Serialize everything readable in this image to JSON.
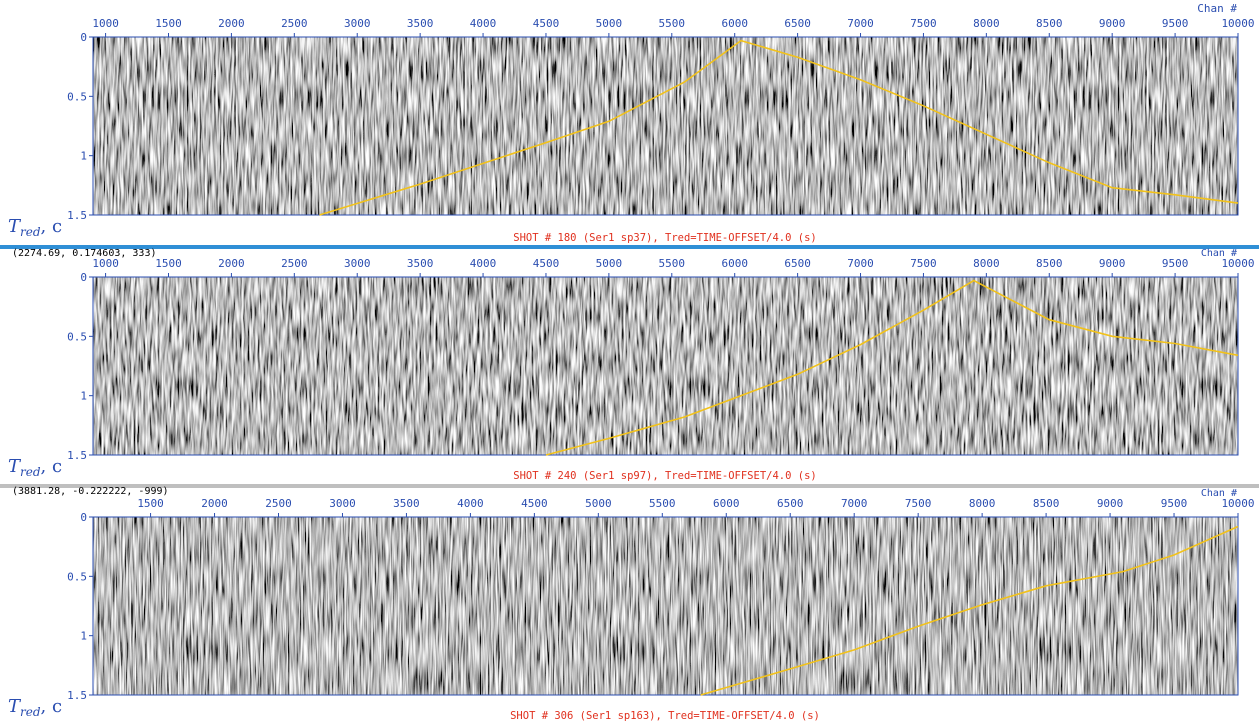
{
  "colors": {
    "axis": "#2a4db0",
    "pick_line": "#f2c21a",
    "caption": "#e0301e",
    "separator_1": "#2f8fd6",
    "separator_2": "#bfbfbf"
  },
  "ylabel": {
    "main": "T",
    "sub": "red",
    "unit": ", c"
  },
  "chart_data": [
    {
      "type": "line",
      "chart_kind": "seismic shot gather with first-break pick",
      "title": "SHOT # 180 (Ser1 sp37), Tred=TIME-OFFSET/4.0 (s)",
      "x_axis_label": "Chan #",
      "xlim": [
        900,
        10000
      ],
      "ylim": [
        1.5,
        0
      ],
      "x_ticks": [
        "1000",
        "1500",
        "2000",
        "2500",
        "3000",
        "3500",
        "4000",
        "4500",
        "5000",
        "5500",
        "6000",
        "6500",
        "7000",
        "7500",
        "8000",
        "8500",
        "9000",
        "9500",
        "10000"
      ],
      "y_ticks": [
        "0",
        "0.5",
        "1",
        "1.5"
      ],
      "readout": "",
      "series": [
        {
          "x": [
            2700,
            3500,
            4500,
            5000,
            5600,
            6050,
            6500,
            7000,
            7500,
            8000,
            8500,
            9000,
            9500,
            10000
          ],
          "y": [
            1.5,
            1.24,
            0.89,
            0.71,
            0.38,
            0.03,
            0.17,
            0.36,
            0.58,
            0.82,
            1.06,
            1.27,
            1.33,
            1.4
          ]
        }
      ]
    },
    {
      "type": "line",
      "chart_kind": "seismic shot gather with first-break pick",
      "title": "SHOT # 240 (Ser1 sp97), Tred=TIME-OFFSET/4.0 (s)",
      "x_axis_label": "Chan #",
      "xlim": [
        900,
        10000
      ],
      "ylim": [
        1.5,
        0
      ],
      "x_ticks": [
        "1000",
        "1500",
        "2000",
        "2500",
        "3000",
        "3500",
        "4000",
        "4500",
        "5000",
        "5500",
        "6000",
        "6500",
        "7000",
        "7500",
        "8000",
        "8500",
        "9000",
        "9500",
        "10000"
      ],
      "y_ticks": [
        "0",
        "0.5",
        "1",
        "1.5"
      ],
      "readout": "(2274.69, 0.174603, 333)",
      "series": [
        {
          "x": [
            4500,
            5000,
            5600,
            6500,
            7000,
            7500,
            7900,
            8500,
            9000,
            9500,
            10000
          ],
          "y": [
            1.5,
            1.36,
            1.18,
            0.82,
            0.57,
            0.28,
            0.03,
            0.36,
            0.5,
            0.56,
            0.66
          ]
        }
      ]
    },
    {
      "type": "line",
      "chart_kind": "seismic shot gather with first-break pick",
      "title": "SHOT # 306 (Ser1 sp163), Tred=TIME-OFFSET/4.0 (s)",
      "x_axis_label": "Chan #",
      "xlim": [
        1050,
        10000
      ],
      "ylim": [
        1.5,
        0
      ],
      "x_ticks": [
        "1500",
        "2000",
        "2500",
        "3000",
        "3500",
        "4000",
        "4500",
        "5000",
        "5500",
        "6000",
        "6500",
        "7000",
        "7500",
        "8000",
        "8500",
        "9000",
        "9500",
        "10000"
      ],
      "y_ticks": [
        "0",
        "0.5",
        "1",
        "1.5"
      ],
      "readout": "(3881.28, -0.222222, -999)",
      "series": [
        {
          "x": [
            5800,
            6500,
            7000,
            7500,
            8000,
            8500,
            9100,
            9500,
            10000
          ],
          "y": [
            1.5,
            1.28,
            1.12,
            0.92,
            0.74,
            0.58,
            0.46,
            0.32,
            0.08
          ]
        }
      ]
    }
  ]
}
